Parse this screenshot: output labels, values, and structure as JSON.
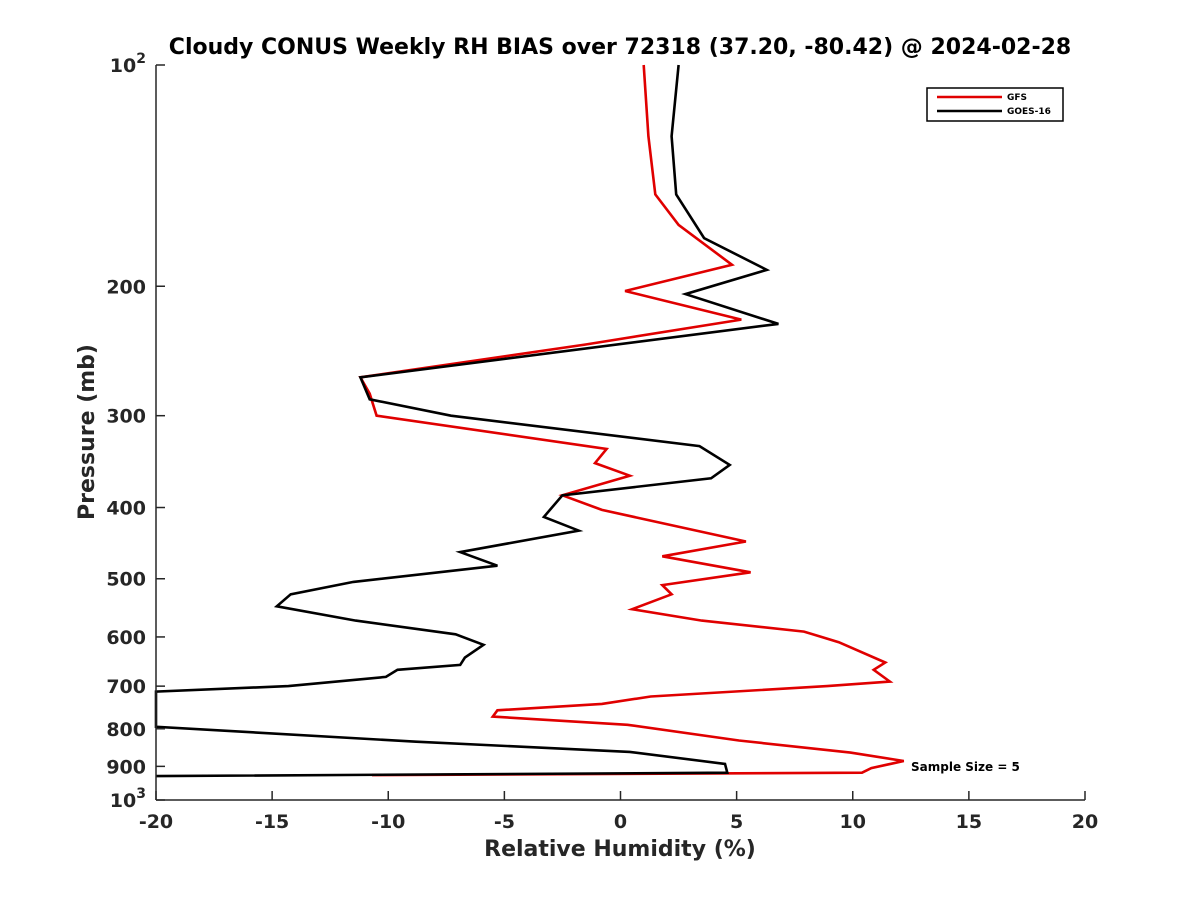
{
  "chart_data": {
    "type": "line",
    "title": "Cloudy CONUS Weekly RH BIAS over 72318 (37.20, -80.42) @ 2024-02-28",
    "xlabel": "Relative Humidity (%)",
    "ylabel": "Pressure (mb)",
    "xlim": [
      -20,
      20
    ],
    "ylim": [
      100,
      1000
    ],
    "yscale": "log",
    "y_reversed": true,
    "xticks": [
      -20,
      -15,
      -10,
      -5,
      0,
      5,
      10,
      15,
      20
    ],
    "xtick_labels": [
      "-20",
      "-15",
      "-10",
      "-5",
      "0",
      "5",
      "10",
      "15",
      "20"
    ],
    "yticks": [
      100,
      200,
      300,
      400,
      500,
      600,
      700,
      800,
      900,
      1000
    ],
    "ytick_labels": [
      {
        "base": "10",
        "exp": "2"
      },
      {
        "base": "200",
        "exp": ""
      },
      {
        "base": "300",
        "exp": ""
      },
      {
        "base": "400",
        "exp": ""
      },
      {
        "base": "500",
        "exp": ""
      },
      {
        "base": "600",
        "exp": ""
      },
      {
        "base": "700",
        "exp": ""
      },
      {
        "base": "800",
        "exp": ""
      },
      {
        "base": "900",
        "exp": ""
      },
      {
        "base": "10",
        "exp": "3"
      }
    ],
    "legend_position": "top-right",
    "annotation": "Sample Size = 5",
    "series": [
      {
        "name": "GFS",
        "color": "#e00000",
        "points": [
          [
            1.0,
            100
          ],
          [
            1.2,
            125
          ],
          [
            1.5,
            150
          ],
          [
            2.5,
            165
          ],
          [
            4.8,
            187
          ],
          [
            0.2,
            203
          ],
          [
            5.2,
            222
          ],
          [
            -1.5,
            240
          ],
          [
            -11.2,
            266
          ],
          [
            -10.8,
            280
          ],
          [
            -10.5,
            300
          ],
          [
            -0.6,
            333
          ],
          [
            -1.1,
            348
          ],
          [
            0.4,
            362
          ],
          [
            -2.5,
            385
          ],
          [
            -0.8,
            403
          ],
          [
            5.4,
            445
          ],
          [
            1.8,
            466
          ],
          [
            5.6,
            490
          ],
          [
            1.8,
            510
          ],
          [
            2.2,
            525
          ],
          [
            0.5,
            550
          ],
          [
            3.5,
            570
          ],
          [
            7.9,
            590
          ],
          [
            9.4,
            610
          ],
          [
            11.4,
            650
          ],
          [
            10.9,
            665
          ],
          [
            11.6,
            690
          ],
          [
            8.9,
            700
          ],
          [
            1.3,
            723
          ],
          [
            -0.8,
            740
          ],
          [
            -5.3,
            755
          ],
          [
            -5.5,
            770
          ],
          [
            0.3,
            790
          ],
          [
            5.1,
            830
          ],
          [
            9.9,
            862
          ],
          [
            12.2,
            885
          ],
          [
            10.8,
            905
          ],
          [
            10.4,
            918
          ],
          [
            -10.7,
            925
          ]
        ]
      },
      {
        "name": "GOES-16",
        "color": "#000000",
        "points": [
          [
            2.5,
            100
          ],
          [
            2.2,
            125
          ],
          [
            2.4,
            150
          ],
          [
            3.6,
            172
          ],
          [
            6.3,
            190
          ],
          [
            2.8,
            205
          ],
          [
            6.8,
            225
          ],
          [
            -11.2,
            266
          ],
          [
            -10.8,
            285
          ],
          [
            -7.3,
            300
          ],
          [
            3.4,
            330
          ],
          [
            4.7,
            350
          ],
          [
            3.9,
            365
          ],
          [
            -2.5,
            385
          ],
          [
            -3.3,
            412
          ],
          [
            -1.8,
            430
          ],
          [
            -6.9,
            460
          ],
          [
            -5.3,
            480
          ],
          [
            -11.5,
            505
          ],
          [
            -14.2,
            525
          ],
          [
            -14.8,
            545
          ],
          [
            -11.4,
            570
          ],
          [
            -7.1,
            595
          ],
          [
            -5.9,
            615
          ],
          [
            -6.7,
            640
          ],
          [
            -6.9,
            655
          ],
          [
            -9.6,
            665
          ],
          [
            -10.1,
            680
          ],
          [
            -14.3,
            700
          ],
          [
            -20,
            712
          ],
          [
            -20,
            795
          ],
          [
            -8.8,
            833
          ],
          [
            0.4,
            860
          ],
          [
            4.5,
            893
          ],
          [
            4.6,
            918
          ],
          [
            -20,
            928
          ]
        ]
      }
    ]
  }
}
